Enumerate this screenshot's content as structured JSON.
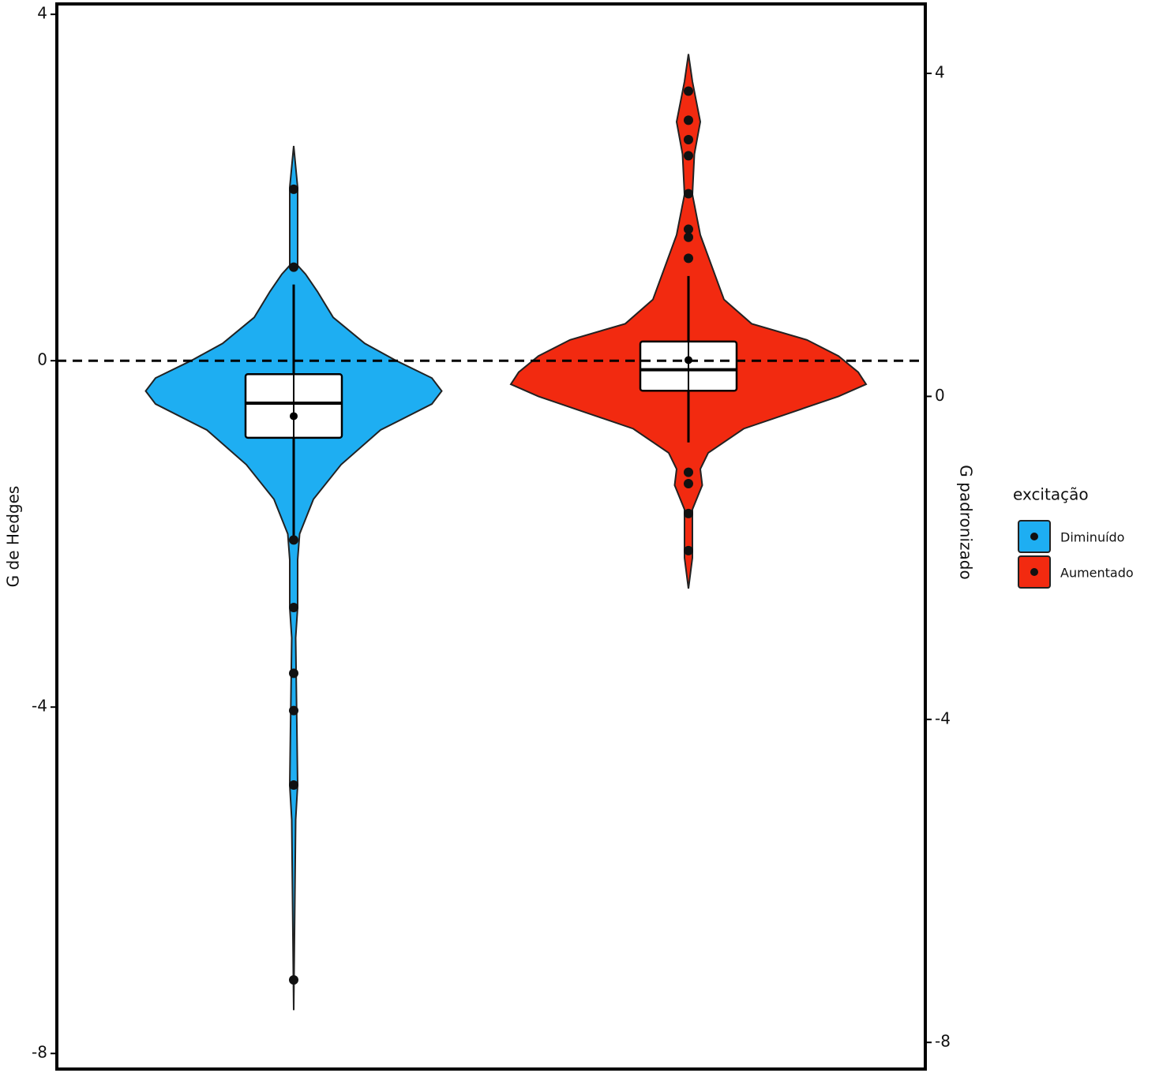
{
  "chart_data": {
    "type": "violin",
    "y_label": "G de Hedges",
    "y2_label": "G padronizado",
    "ylim": [
      -8.18,
      4.12
    ],
    "yticks": [
      -8,
      -4,
      0,
      4
    ],
    "y2lim": [
      -8.33,
      4.86
    ],
    "y2ticks": [
      -8,
      -4,
      0,
      4
    ],
    "reference_line": {
      "value": 0,
      "style": "dashed"
    },
    "legend_title": "excitação",
    "legend": "right",
    "series": [
      {
        "name": "Diminuído",
        "color": "#1eaef2",
        "density": {
          "y": [
            2.48,
            2.0,
            1.1,
            1.0,
            0.8,
            0.5,
            0.2,
            0.0,
            -0.2,
            -0.35,
            -0.5,
            -0.8,
            -1.2,
            -1.6,
            -2.0,
            -2.3,
            -2.85,
            -3.2,
            -4.9,
            -5.3,
            -7.5
          ],
          "width": [
            0,
            0.02,
            0.02,
            0.06,
            0.12,
            0.2,
            0.36,
            0.52,
            0.7,
            0.75,
            0.7,
            0.44,
            0.24,
            0.1,
            0.03,
            0.02,
            0.02,
            0.01,
            0.02,
            0.01,
            0
          ]
        },
        "whisker_low": -2.03,
        "q1": -0.89,
        "median": -0.49,
        "q3": -0.155,
        "whisker_high": 0.88,
        "mean": -0.64,
        "outliers": [
          1.98,
          1.08,
          -2.07,
          -2.85,
          -3.61,
          -4.04,
          -4.9,
          -7.15
        ]
      },
      {
        "name": "Aumentado",
        "color": "#f22a10",
        "axis": "y2",
        "density": {
          "y": [
            4.24,
            3.9,
            3.4,
            3.0,
            2.5,
            2.0,
            1.6,
            1.2,
            0.9,
            0.7,
            0.5,
            0.3,
            0.15,
            0.0,
            -0.2,
            -0.4,
            -0.7,
            -0.9,
            -1.1,
            -1.4,
            -2.0,
            -2.38
          ],
          "width": [
            0,
            0.02,
            0.06,
            0.03,
            0.02,
            0.06,
            0.12,
            0.18,
            0.32,
            0.6,
            0.76,
            0.86,
            0.9,
            0.76,
            0.52,
            0.28,
            0.1,
            0.06,
            0.07,
            0.02,
            0.02,
            0
          ]
        },
        "whisker_low": -0.57,
        "q1": 0.07,
        "median": 0.33,
        "q3": 0.68,
        "whisker_high": 1.49,
        "mean": 0.45,
        "outliers": [
          3.78,
          3.42,
          3.18,
          2.98,
          2.51,
          2.07,
          1.97,
          1.71,
          -0.94,
          -1.08,
          -1.45,
          -1.91
        ]
      }
    ]
  }
}
